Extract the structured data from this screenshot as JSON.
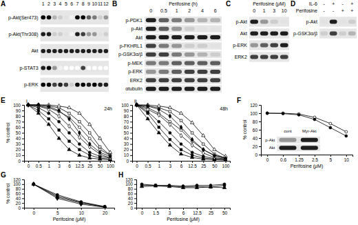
{
  "panel_labels": [
    "A",
    "B",
    "C",
    "D",
    "E",
    "F",
    "G",
    "H"
  ],
  "blots": [
    {
      "lane_labels": [
        "1",
        "2",
        "3",
        "4",
        "5",
        "6",
        "7",
        "8",
        "9",
        "10",
        "11",
        "12"
      ],
      "rows": [
        {
          "label": "p-Akt(Ser473)",
          "bands": [
            1,
            1,
            0.4,
            0.3,
            0.2,
            0.1,
            1,
            1,
            0.7,
            0.6,
            0.3,
            0.5
          ]
        },
        {
          "label": "p-Akt(Thr308)",
          "bands": [
            0.9,
            0.9,
            0.3,
            0.3,
            0.2,
            0.1,
            0.9,
            0.8,
            0.5,
            0.5,
            0.2,
            0.3
          ]
        },
        {
          "label": "Akt",
          "bands": [
            0.9,
            0.9,
            0.9,
            0.9,
            0.9,
            0.9,
            0.9,
            0.9,
            0.9,
            0.9,
            0.9,
            0.9
          ]
        },
        {
          "label": "p-STAT3",
          "bands": [
            0.9,
            1,
            0.5,
            0.1,
            0,
            0,
            0,
            0.8,
            0,
            0,
            0,
            0
          ]
        },
        {
          "label": "p-ERK",
          "bands": [
            1,
            1,
            0.8,
            0.9,
            0.8,
            0.3,
            1,
            1,
            0.9,
            1,
            0.9,
            0.9
          ]
        }
      ]
    },
    {
      "title": "Perifosine (h)",
      "lane_labels": [
        "0",
        "0.5",
        "1",
        "2",
        "4",
        "6"
      ],
      "rows": [
        {
          "label": "p-PDK1",
          "bands": [
            0.9,
            0.7,
            0.6,
            0.5,
            0.4,
            0.4
          ]
        },
        {
          "label": "p-Akt",
          "bands": [
            0.9,
            0.7,
            0.5,
            0.3,
            0.2,
            0.2
          ]
        },
        {
          "label": "Akt",
          "bands": [
            0.9,
            0.9,
            0.9,
            0.9,
            0.9,
            0.9
          ]
        },
        {
          "label": "p-FKHRL1",
          "bands": [
            0.8,
            0.6,
            0.5,
            0.3,
            0.3,
            0.2
          ]
        },
        {
          "label": "p-GSK3α/β",
          "bands": [
            0.8,
            0.8,
            0.6,
            0.5,
            0.4,
            0.3
          ]
        },
        {
          "label": "p-MEK",
          "bands": [
            0.6,
            0.6,
            0.7,
            0.7,
            0.7,
            0.7
          ]
        },
        {
          "label": "p-ERK",
          "bands": [
            0.5,
            0.6,
            0.7,
            0.8,
            0.8,
            0.8
          ]
        },
        {
          "label": "ERK2",
          "bands": [
            0.8,
            0.8,
            0.8,
            0.8,
            0.8,
            0.8
          ]
        },
        {
          "label": "αtubulin",
          "bands": [
            0.9,
            0.9,
            0.9,
            0.9,
            0.9,
            0.9
          ]
        }
      ]
    },
    {
      "title": "Perifosine (μM)",
      "lane_labels": [
        "0",
        "1",
        "3",
        "10"
      ],
      "rows": [
        {
          "label": "p-Akt",
          "bands": [
            0.9,
            0.5,
            0.3,
            0.2
          ]
        },
        {
          "label": "Akt",
          "bands": [
            0.9,
            0.9,
            0.9,
            0.9
          ]
        },
        {
          "label": "p-ERK",
          "bands": [
            0.5,
            0.7,
            0.8,
            0.9
          ]
        },
        {
          "label": "ERK2",
          "bands": [
            0.8,
            0.8,
            0.8,
            0.8
          ]
        }
      ]
    },
    {
      "header_rows": [
        {
          "label": "IL-6",
          "values": [
            "-",
            "+",
            "-",
            "+"
          ]
        },
        {
          "label": "Perifosine",
          "values": [
            "-",
            "-",
            "+",
            "+"
          ]
        }
      ],
      "rows": [
        {
          "label": "p-Akt",
          "bands": [
            0.2,
            0.9,
            0.2,
            0.3
          ]
        },
        {
          "label": "p-GSK3α/β",
          "bands": [
            0.3,
            0.8,
            0.3,
            0.4
          ]
        }
      ]
    }
  ],
  "chart_data": [
    {
      "type": "line",
      "label": "i",
      "annotation": "24h",
      "ylabel": "% control",
      "categories": [
        "0",
        "0.5",
        "1",
        "3",
        "6",
        "12.5",
        "25",
        "50",
        "100"
      ],
      "ylim": [
        0,
        100
      ],
      "yticks": [
        0,
        10,
        20,
        30,
        40,
        50,
        60,
        70,
        80,
        90,
        100
      ],
      "series": [
        {
          "color": "#000000",
          "marker": "circle-open",
          "values": [
            100,
            98,
            95,
            88,
            78,
            60,
            40,
            20,
            10
          ]
        },
        {
          "color": "#000000",
          "marker": "circle",
          "values": [
            100,
            95,
            85,
            70,
            50,
            30,
            15,
            8,
            5
          ]
        },
        {
          "color": "#000000",
          "marker": "square-open",
          "values": [
            100,
            100,
            98,
            95,
            85,
            70,
            50,
            25,
            10
          ]
        },
        {
          "color": "#000000",
          "marker": "square",
          "values": [
            100,
            90,
            75,
            55,
            35,
            20,
            10,
            5,
            3
          ]
        },
        {
          "color": "#000000",
          "marker": "triangle-open",
          "values": [
            100,
            100,
            100,
            98,
            95,
            85,
            65,
            40,
            15
          ]
        },
        {
          "color": "#000000",
          "marker": "triangle",
          "values": [
            100,
            85,
            65,
            40,
            20,
            10,
            5,
            3,
            2
          ]
        },
        {
          "color": "#000000",
          "marker": "diamond-open",
          "values": [
            100,
            98,
            92,
            80,
            62,
            42,
            25,
            12,
            5
          ]
        },
        {
          "color": "#000000",
          "marker": "diamond",
          "values": [
            100,
            100,
            97,
            90,
            75,
            50,
            30,
            15,
            8
          ]
        }
      ]
    },
    {
      "type": "line",
      "label": "ii",
      "annotation": "48h",
      "categories": [
        "0",
        "0.5",
        "1",
        "3",
        "6",
        "12.5",
        "25",
        "50",
        "100"
      ],
      "ylim": [
        0,
        100
      ],
      "yticks": [
        0,
        10,
        20,
        30,
        40,
        50,
        60,
        70,
        80,
        90,
        100
      ],
      "series": [
        {
          "color": "#000000",
          "marker": "circle-open",
          "values": [
            100,
            95,
            85,
            70,
            55,
            35,
            20,
            10,
            5
          ]
        },
        {
          "color": "#000000",
          "marker": "circle",
          "values": [
            100,
            88,
            70,
            50,
            30,
            15,
            8,
            4,
            3
          ]
        },
        {
          "color": "#000000",
          "marker": "square-open",
          "values": [
            100,
            98,
            95,
            88,
            72,
            50,
            30,
            12,
            5
          ]
        },
        {
          "color": "#000000",
          "marker": "square",
          "values": [
            100,
            85,
            60,
            38,
            20,
            10,
            5,
            3,
            2
          ]
        },
        {
          "color": "#000000",
          "marker": "triangle-open",
          "values": [
            100,
            100,
            98,
            95,
            85,
            68,
            45,
            20,
            8
          ]
        },
        {
          "color": "#000000",
          "marker": "triangle",
          "values": [
            100,
            75,
            50,
            28,
            12,
            6,
            3,
            2,
            1
          ]
        },
        {
          "color": "#000000",
          "marker": "diamond-open",
          "values": [
            100,
            92,
            82,
            65,
            45,
            28,
            14,
            6,
            3
          ]
        },
        {
          "color": "#000000",
          "marker": "diamond",
          "values": [
            100,
            98,
            92,
            80,
            60,
            38,
            20,
            9,
            4
          ]
        }
      ]
    },
    {
      "type": "line",
      "ylabel": "% control",
      "xlabel": "Perifosine (μM)",
      "categories": [
        "0",
        "0.6",
        "1.25",
        "2.5",
        "5",
        "10"
      ],
      "ylim": [
        0,
        120
      ],
      "yticks": [
        0,
        20,
        40,
        60,
        80,
        100,
        120
      ],
      "series": [
        {
          "color": "#000000",
          "marker": "circle-open",
          "values": [
            100,
            100,
            98,
            90,
            75,
            55
          ]
        },
        {
          "color": "#000000",
          "marker": "circle",
          "values": [
            100,
            99,
            96,
            85,
            65,
            45
          ]
        }
      ],
      "inset": {
        "lane_labels": [
          "cont",
          "Myr-Akt"
        ],
        "rows": [
          {
            "label": "p-Akt",
            "bands": [
              0.5,
              0.9
            ]
          },
          {
            "label": "Akt",
            "bands": [
              0.9,
              0.9
            ]
          }
        ]
      }
    },
    {
      "type": "line",
      "ylabel": "% control",
      "xlabel": "Perifosine (μM)",
      "categories": [
        "0",
        "5",
        "10",
        "20"
      ],
      "ylim": [
        0,
        120
      ],
      "yticks": [
        0,
        20,
        40,
        60,
        80,
        100,
        120
      ],
      "series": [
        {
          "color": "#000000",
          "marker": "circle",
          "values": [
            100,
            55,
            25,
            5
          ]
        },
        {
          "color": "#000000",
          "marker": "square",
          "values": [
            100,
            50,
            22,
            4
          ]
        },
        {
          "color": "#000000",
          "marker": "triangle",
          "values": [
            100,
            45,
            20,
            3
          ]
        },
        {
          "color": "#000000",
          "marker": "diamond",
          "values": [
            100,
            40,
            15,
            2
          ]
        }
      ]
    },
    {
      "type": "line",
      "xlabel": "Perifosine (μM)",
      "categories": [
        "0",
        "1.5",
        "3",
        "6",
        "12.5",
        "25",
        "50"
      ],
      "ylim": [
        0,
        120
      ],
      "yticks": [
        0,
        20,
        40,
        60,
        80,
        100,
        120
      ],
      "series": [
        {
          "color": "#000000",
          "marker": "circle",
          "values": [
            100,
            95,
            95,
            92,
            95,
            95,
            100
          ]
        },
        {
          "color": "#000000",
          "marker": "square",
          "values": [
            95,
            95,
            92,
            88,
            90,
            88,
            95
          ]
        },
        {
          "color": "#000000",
          "marker": "triangle",
          "values": [
            90,
            92,
            90,
            85,
            85,
            88,
            85
          ]
        }
      ]
    }
  ]
}
